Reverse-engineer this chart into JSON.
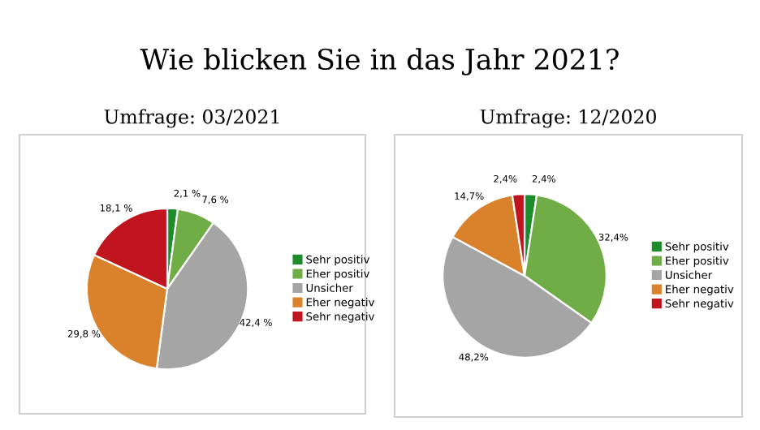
{
  "chart_data": [
    {
      "type": "pie",
      "title": "Wie blicken Sie in das Jahr 2021?",
      "subtitle": "Umfrage: 03/2021",
      "categories": [
        "Sehr positiv",
        "Eher positiv",
        "Unsicher",
        "Eher negativ",
        "Sehr negativ"
      ],
      "values": [
        2.1,
        7.6,
        42.4,
        29.8,
        18.1
      ],
      "value_labels": [
        "2,1 %",
        "7,6 %",
        "42,4 %",
        "29,8 %",
        "18,1 %"
      ],
      "colors": [
        "#1e8c2a",
        "#70ad47",
        "#a5a5a5",
        "#d9822b",
        "#c0141e"
      ],
      "legend": "right"
    },
    {
      "type": "pie",
      "subtitle": "Umfrage: 12/2020",
      "categories": [
        "Sehr positiv",
        "Eher positiv",
        "Unsicher",
        "Eher negativ",
        "Sehr negativ"
      ],
      "values": [
        2.4,
        32.4,
        48.2,
        14.7,
        2.4
      ],
      "value_labels": [
        "2,4%",
        "32,4%",
        "48,2%",
        "14,7%",
        "2,4%"
      ],
      "colors": [
        "#1e8c2a",
        "#70ad47",
        "#a5a5a5",
        "#d9822b",
        "#c0141e"
      ],
      "legend": "right"
    }
  ]
}
